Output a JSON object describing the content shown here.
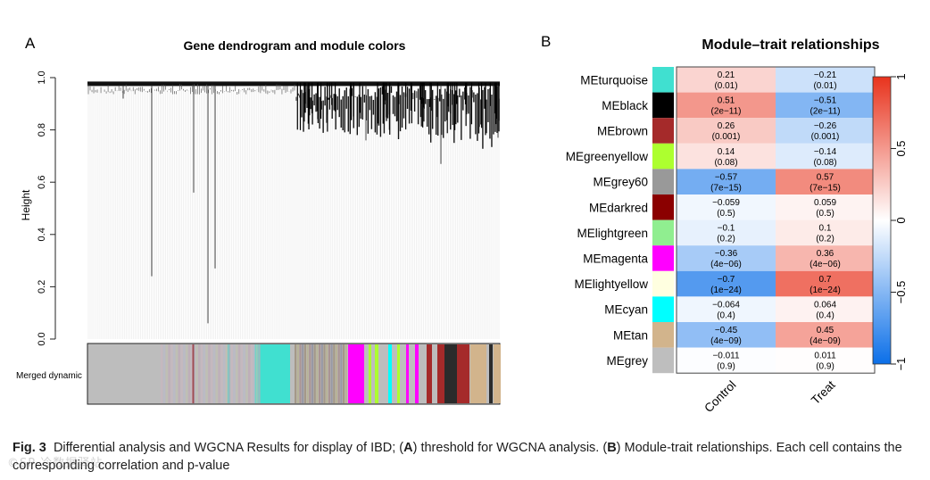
{
  "panel_a": {
    "letter": "A",
    "title": "Gene dendrogram and module colors",
    "ylabel": "Height",
    "yticks": [
      "0.0",
      "0.2",
      "0.4",
      "0.6",
      "0.8",
      "1.0"
    ],
    "color_row_label": "Merged dynamic"
  },
  "panel_b": {
    "letter": "B",
    "title": "Module–trait relationships",
    "colorbar_ticks": [
      "1",
      "0.5",
      "0",
      "−0.5",
      "−1"
    ]
  },
  "caption": {
    "fig_label": "Fig. 3",
    "part1": "Differential analysis and WGCNA Results for display of IBD; (",
    "a": "A",
    "part2": ") threshold for WGCNA analysis. (",
    "b": "B",
    "part3": ") Module-trait relationships. Each cell contains the corresponding correlation and p-value"
  },
  "watermark": "©SP 冷数据驿站",
  "chart_data": [
    {
      "type": "dendrogram",
      "title": "Gene dendrogram and module colors",
      "ylabel": "Height",
      "ylim": [
        0,
        1
      ],
      "color_row_label": "Merged dynamic",
      "module_colors_in_row": [
        "#bdbdbd",
        "#8b0000",
        "#40e0d0",
        "#ff00ff",
        "#adff2f",
        "#00ffff",
        "#2b2b2b",
        "#a52a2a",
        "#d2b48c"
      ]
    },
    {
      "type": "heatmap",
      "title": "Module–trait relationships",
      "x": [
        "Control",
        "Treat"
      ],
      "y": [
        "MEturquoise",
        "MEblack",
        "MEbrown",
        "MEgreenyellow",
        "MEgrey60",
        "MEdarkred",
        "MElightgreen",
        "MEmagenta",
        "MElightyellow",
        "MEcyan",
        "MEtan",
        "MEgrey"
      ],
      "module_colors": [
        "#40e0d0",
        "#000000",
        "#a52a2a",
        "#adff2f",
        "#999999",
        "#8b0000",
        "#90ee90",
        "#ff00ff",
        "#ffffe0",
        "#00ffff",
        "#d2b48c",
        "#bebebe"
      ],
      "correlation": [
        [
          0.21,
          -0.21
        ],
        [
          0.51,
          -0.51
        ],
        [
          0.26,
          -0.26
        ],
        [
          0.14,
          -0.14
        ],
        [
          -0.57,
          0.57
        ],
        [
          -0.059,
          0.059
        ],
        [
          -0.1,
          0.1
        ],
        [
          -0.36,
          0.36
        ],
        [
          -0.7,
          0.7
        ],
        [
          -0.064,
          0.064
        ],
        [
          -0.45,
          0.45
        ],
        [
          -0.011,
          0.011
        ]
      ],
      "corr_labels": [
        [
          "0.21",
          "−0.21"
        ],
        [
          "0.51",
          "−0.51"
        ],
        [
          "0.26",
          "−0.26"
        ],
        [
          "0.14",
          "−0.14"
        ],
        [
          "−0.57",
          "0.57"
        ],
        [
          "−0.059",
          "0.059"
        ],
        [
          "−0.1",
          "0.1"
        ],
        [
          "−0.36",
          "0.36"
        ],
        [
          "−0.7",
          "0.7"
        ],
        [
          "−0.064",
          "0.064"
        ],
        [
          "−0.45",
          "0.45"
        ],
        [
          "−0.011",
          "0.011"
        ]
      ],
      "pvalue_labels": [
        "(0.01)",
        "(2e−11)",
        "(0.001)",
        "(0.08)",
        "(7e−15)",
        "(0.5)",
        "(0.2)",
        "(4e−06)",
        "(1e−24)",
        "(0.4)",
        "(4e−09)",
        "(0.9)"
      ],
      "color_range": [
        -1,
        1
      ],
      "colormap": [
        "#0b6fe8",
        "#ffffff",
        "#e8331d"
      ],
      "colorbar_ticks": [
        1,
        0.5,
        0,
        -0.5,
        -1
      ]
    }
  ]
}
